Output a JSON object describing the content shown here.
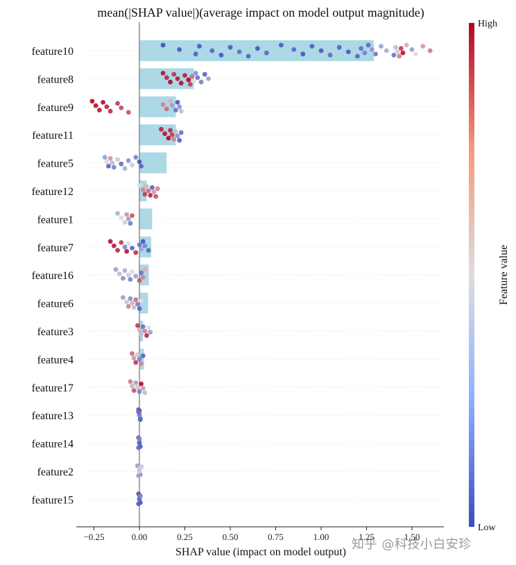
{
  "chart_data": {
    "type": "scatter",
    "subtype": "shap-beeswarm-with-mean-bars",
    "title": "mean(|SHAP value|)(average impact on model output magnitude)",
    "xlabel": "SHAP value (impact on model output)",
    "xlim": [
      -0.35,
      1.68
    ],
    "x_ticks": [
      -0.25,
      0.0,
      0.25,
      0.5,
      0.75,
      1.0,
      1.25,
      1.5
    ],
    "x_tick_labels": [
      "−0.25",
      "0.00",
      "0.25",
      "0.50",
      "0.75",
      "1.00",
      "1.25",
      "1.50"
    ],
    "features": [
      "feature10",
      "feature8",
      "feature9",
      "feature11",
      "feature5",
      "feature12",
      "feature1",
      "feature7",
      "feature16",
      "feature6",
      "feature3",
      "feature4",
      "feature17",
      "feature13",
      "feature14",
      "feature2",
      "feature15"
    ],
    "mean_abs_shap": [
      1.29,
      0.3,
      0.2,
      0.2,
      0.15,
      0.04,
      0.07,
      0.065,
      0.052,
      0.048,
      0.02,
      0.025,
      0.0,
      0.0,
      0.0,
      0.0,
      0.0
    ],
    "bar_color": "#ADD8E6",
    "colorbar": {
      "label": "Feature value",
      "high_label": "High",
      "low_label": "Low",
      "low_color": "#3B4CC0",
      "mid_color": "#DDDDDD",
      "high_color": "#B40426"
    },
    "points": [
      {
        "feature": "feature10",
        "shap": [
          0.13,
          0.22,
          0.31,
          0.33,
          0.4,
          0.45,
          0.5,
          0.55,
          0.6,
          0.65,
          0.7,
          0.78,
          0.85,
          0.9,
          0.95,
          1.0,
          1.05,
          1.1,
          1.15,
          1.2,
          1.22,
          1.24,
          1.26,
          1.28,
          1.3,
          1.33,
          1.36,
          1.4,
          1.41,
          1.42,
          1.43,
          1.44,
          1.45,
          1.47,
          1.5,
          1.52,
          1.56,
          1.6
        ],
        "value": [
          0.02,
          0.05,
          0.08,
          0.06,
          0.1,
          0.04,
          0.07,
          0.12,
          0.09,
          0.05,
          0.11,
          0.07,
          0.1,
          0.05,
          0.08,
          0.06,
          0.12,
          0.09,
          0.06,
          0.1,
          0.14,
          0.2,
          0.11,
          0.25,
          0.18,
          0.3,
          0.35,
          0.15,
          0.4,
          0.55,
          0.7,
          0.85,
          0.95,
          0.6,
          0.3,
          0.5,
          0.65,
          0.72
        ]
      },
      {
        "feature": "feature8",
        "shap": [
          0.13,
          0.15,
          0.17,
          0.19,
          0.21,
          0.23,
          0.25,
          0.27,
          0.28,
          0.29,
          0.3,
          0.31,
          0.32,
          0.34,
          0.36,
          0.38
        ],
        "value": [
          0.95,
          0.9,
          0.97,
          0.88,
          0.93,
          0.96,
          0.92,
          0.98,
          0.85,
          0.75,
          0.5,
          0.25,
          0.15,
          0.2,
          0.1,
          0.3
        ]
      },
      {
        "feature": "feature9",
        "shap": [
          -0.26,
          -0.24,
          -0.22,
          -0.2,
          -0.18,
          -0.16,
          -0.12,
          -0.1,
          -0.06,
          0.13,
          0.15,
          0.17,
          0.18,
          0.2,
          0.21,
          0.22,
          0.23
        ],
        "value": [
          0.97,
          0.95,
          0.93,
          0.96,
          0.9,
          0.88,
          0.85,
          0.82,
          0.8,
          0.7,
          0.75,
          0.6,
          0.3,
          0.15,
          0.05,
          0.25,
          0.4
        ]
      },
      {
        "feature": "feature11",
        "shap": [
          0.12,
          0.14,
          0.16,
          0.17,
          0.18,
          0.19,
          0.2,
          0.21,
          0.22,
          0.23
        ],
        "value": [
          0.92,
          0.95,
          0.97,
          0.9,
          0.85,
          0.7,
          0.4,
          0.25,
          0.1,
          0.15
        ]
      },
      {
        "feature": "feature5",
        "shap": [
          -0.19,
          -0.18,
          -0.17,
          -0.16,
          -0.15,
          -0.14,
          -0.12,
          -0.1,
          -0.08,
          -0.06,
          -0.04,
          -0.02,
          0.0,
          0.01
        ],
        "value": [
          0.3,
          0.5,
          0.1,
          0.65,
          0.4,
          0.2,
          0.55,
          0.15,
          0.35,
          0.25,
          0.45,
          0.2,
          0.05,
          0.1
        ]
      },
      {
        "feature": "feature12",
        "shap": [
          0.0,
          0.02,
          0.03,
          0.04,
          0.05,
          0.06,
          0.07,
          0.08,
          0.09,
          0.1
        ],
        "value": [
          0.5,
          0.7,
          0.85,
          0.6,
          0.75,
          0.9,
          0.1,
          0.65,
          0.8,
          0.7
        ]
      },
      {
        "feature": "feature1",
        "shap": [
          -0.12,
          -0.1,
          -0.08,
          -0.07,
          -0.06,
          -0.05,
          -0.04
        ],
        "value": [
          0.35,
          0.5,
          0.45,
          0.65,
          0.3,
          0.2,
          0.8
        ]
      },
      {
        "feature": "feature7",
        "shap": [
          -0.16,
          -0.14,
          -0.12,
          -0.1,
          -0.08,
          -0.07,
          -0.06,
          -0.04,
          -0.02,
          0.0,
          0.01,
          0.02,
          0.03,
          0.05
        ],
        "value": [
          0.95,
          0.92,
          0.9,
          0.85,
          0.2,
          0.93,
          0.5,
          0.1,
          0.88,
          0.15,
          0.3,
          0.05,
          0.2,
          0.1
        ]
      },
      {
        "feature": "feature16",
        "shap": [
          -0.13,
          -0.11,
          -0.09,
          -0.08,
          -0.06,
          -0.05,
          -0.04,
          -0.02,
          0.0,
          0.01,
          0.02,
          0.03
        ],
        "value": [
          0.3,
          0.4,
          0.25,
          0.35,
          0.45,
          0.2,
          0.5,
          0.3,
          0.8,
          0.15,
          0.7,
          0.6
        ]
      },
      {
        "feature": "feature6",
        "shap": [
          -0.09,
          -0.07,
          -0.06,
          -0.05,
          -0.04,
          -0.03,
          -0.02,
          -0.01,
          0.0,
          0.01
        ],
        "value": [
          0.3,
          0.55,
          0.7,
          0.25,
          0.6,
          0.4,
          0.75,
          0.2,
          0.1,
          0.5
        ]
      },
      {
        "feature": "feature3",
        "shap": [
          -0.01,
          0.0,
          0.01,
          0.02,
          0.03,
          0.04,
          0.05,
          0.06
        ],
        "value": [
          0.85,
          0.6,
          0.4,
          0.15,
          0.7,
          0.9,
          0.5,
          0.3
        ]
      },
      {
        "feature": "feature4",
        "shap": [
          -0.04,
          -0.03,
          -0.02,
          -0.01,
          0.0,
          0.01,
          0.02
        ],
        "value": [
          0.75,
          0.65,
          0.85,
          0.55,
          0.2,
          0.7,
          0.1
        ]
      },
      {
        "feature": "feature17",
        "shap": [
          -0.05,
          -0.04,
          -0.03,
          -0.02,
          -0.01,
          0.0,
          0.01,
          0.02,
          0.03
        ],
        "value": [
          0.7,
          0.6,
          0.8,
          0.3,
          0.55,
          0.2,
          0.95,
          0.65,
          0.4
        ]
      },
      {
        "feature": "feature13",
        "shap": [
          -0.005,
          0.0,
          0.005,
          0.0,
          0.0,
          0.005,
          -0.005
        ],
        "value": [
          0.1,
          0.15,
          0.05,
          0.9,
          0.2,
          0.1,
          0.12
        ]
      },
      {
        "feature": "feature14",
        "shap": [
          -0.005,
          0.0,
          0.005,
          0.0,
          0.0,
          -0.005
        ],
        "value": [
          0.1,
          0.15,
          0.05,
          0.2,
          0.1,
          0.12
        ]
      },
      {
        "feature": "feature2",
        "shap": [
          -0.01,
          0.0,
          0.005,
          0.01,
          0.0,
          -0.005,
          0.005
        ],
        "value": [
          0.3,
          0.35,
          0.25,
          0.4,
          0.55,
          0.3,
          0.45
        ]
      },
      {
        "feature": "feature15",
        "shap": [
          -0.005,
          0.0,
          0.005,
          0.0,
          0.0,
          -0.005,
          0.005
        ],
        "value": [
          0.1,
          0.15,
          0.05,
          0.9,
          0.12,
          0.08,
          0.2
        ]
      }
    ]
  },
  "watermark": "知乎 @科技小白安珍"
}
